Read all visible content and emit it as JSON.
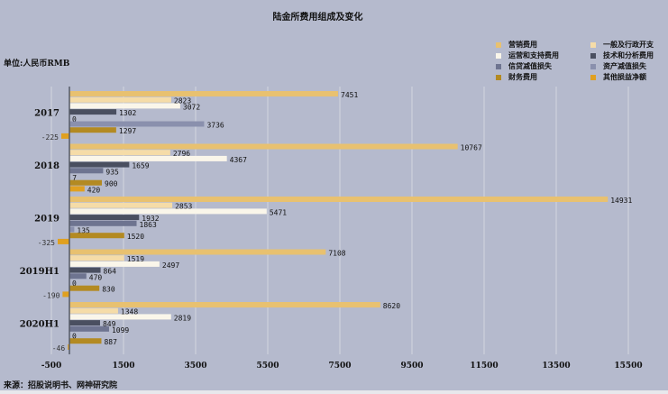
{
  "chart_data": {
    "type": "bar",
    "orientation": "horizontal",
    "title": "陆金所费用组成及变化",
    "unit_label": "单位:人民币RMB",
    "source": "来源：招股说明书、网神研究院",
    "categories": [
      "2017",
      "2018",
      "2019",
      "2019H1",
      "2020H1"
    ],
    "series": [
      {
        "name": "营销费用",
        "color": "#e8c170",
        "values": [
          7451,
          10767,
          14931,
          7108,
          8620
        ]
      },
      {
        "name": "一般及行政开支",
        "color": "#f5dca8",
        "values": [
          2823,
          2796,
          2853,
          1519,
          1348
        ]
      },
      {
        "name": "运营和支持费用",
        "color": "#faf6ea",
        "values": [
          3072,
          4367,
          5471,
          2497,
          2819
        ]
      },
      {
        "name": "技术和分析费用",
        "color": "#4a4f60",
        "values": [
          1302,
          1659,
          1932,
          864,
          849
        ]
      },
      {
        "name": "信贷减值损失",
        "color": "#6e7490",
        "values": [
          0,
          935,
          1863,
          470,
          1099
        ]
      },
      {
        "name": "资产减值损失",
        "color": "#8a90ad",
        "values": [
          3736,
          7,
          135,
          0,
          0
        ]
      },
      {
        "name": "财务费用",
        "color": "#b38a22",
        "values": [
          1297,
          900,
          1520,
          830,
          887
        ]
      },
      {
        "name": "其他损益净额",
        "color": "#e0a020",
        "values": [
          -225,
          420,
          -325,
          -190,
          -46
        ]
      }
    ],
    "xticks": [
      -500,
      1500,
      3500,
      5500,
      7500,
      9500,
      11500,
      13500,
      15500
    ],
    "xlim": [
      -500,
      16500
    ],
    "grid": true,
    "legend_position": "top-right",
    "show_labels_for_values": {
      "2017": [
        "营销费用",
        "一般及行政开支",
        "运营和支持费用",
        "技术和分析费用",
        "信贷减值损失",
        "资产减值损失",
        "财务费用",
        "其他损益净额"
      ]
    }
  }
}
